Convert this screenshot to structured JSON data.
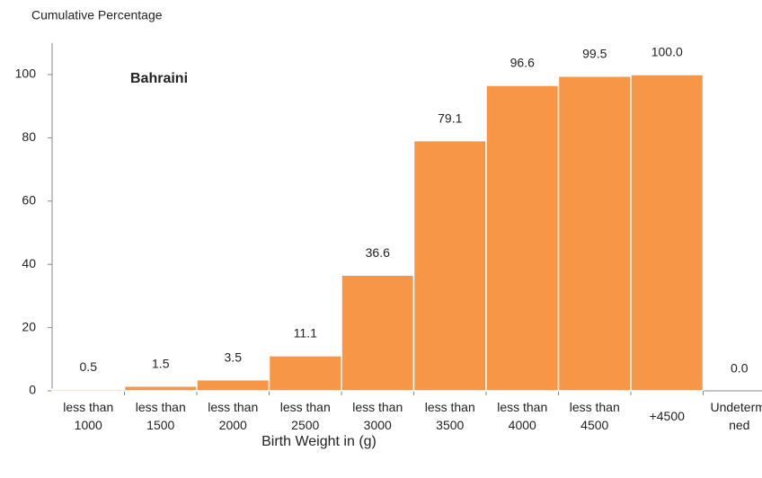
{
  "chart_data": {
    "type": "bar",
    "y_axis_title": "Cumulative Percentage",
    "x_axis_title": "Birth Weight in (g)",
    "annotation": "Bahraini",
    "categories": [
      "less than 1000",
      "less than 1500",
      "less than 2000",
      "less than 2500",
      "less than 3000",
      "less than 3500",
      "less than 4000",
      "less than 4500",
      "+4500",
      "Undetermined"
    ],
    "values": [
      0.5,
      1.5,
      3.5,
      11.1,
      36.6,
      79.1,
      96.6,
      99.5,
      100.0,
      0.0
    ],
    "value_labels": [
      "0.5",
      "1.5",
      "3.5",
      "11.1",
      "36.6",
      "79.1",
      "96.6",
      "99.5",
      "100.0",
      "0.0"
    ],
    "color": "#f79646",
    "ylim": [
      0,
      110
    ],
    "yticks": [
      0,
      20,
      40,
      60,
      80,
      100
    ],
    "grid": false
  }
}
